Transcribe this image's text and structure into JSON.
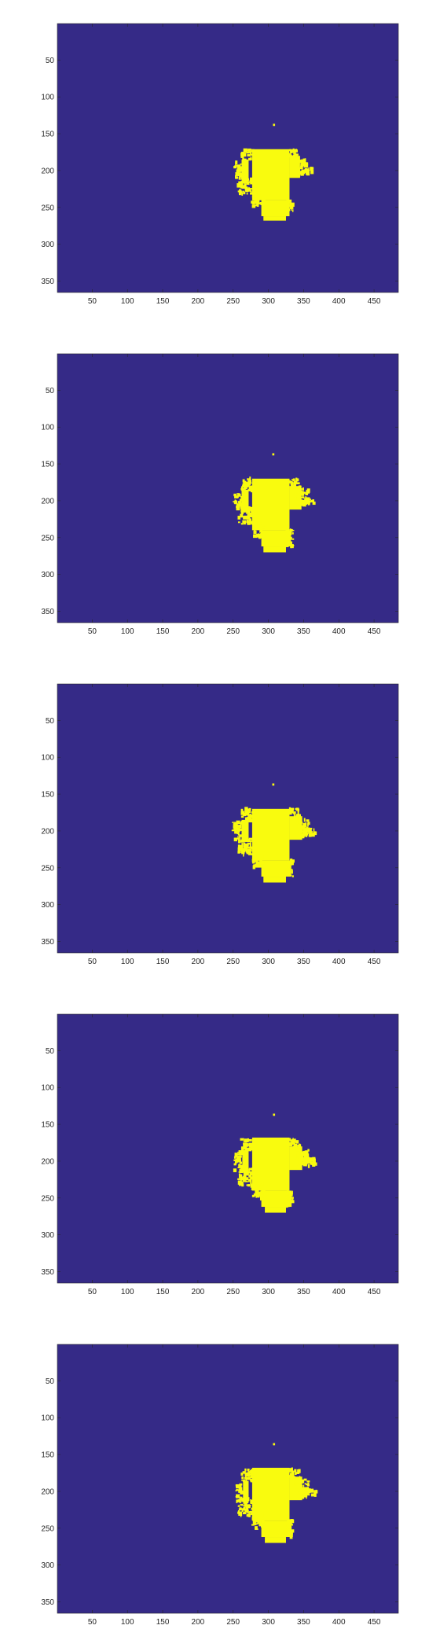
{
  "figure": {
    "background_color": "#ffffff",
    "axes_color": "#262626"
  },
  "chart_data": [
    {
      "type": "heatmap",
      "title": "",
      "xlabel": "",
      "ylabel": "",
      "xlim": [
        0.5,
        484.5
      ],
      "ylim": [
        0.5,
        365.5
      ],
      "y_reversed": true,
      "x_ticks": [
        50,
        100,
        150,
        200,
        250,
        300,
        350,
        400,
        450
      ],
      "y_ticks": [
        50,
        100,
        150,
        200,
        250,
        300,
        350
      ],
      "x_tick_labels": [
        "50",
        "100",
        "150",
        "200",
        "250",
        "300",
        "350",
        "400",
        "450"
      ],
      "y_tick_labels": [
        "50",
        "100",
        "150",
        "200",
        "250",
        "300",
        "350"
      ],
      "colors": {
        "background": "#352a87",
        "mask": "#f9fb0e"
      },
      "mask_value": 1,
      "background_value": 0,
      "speck": [
        308,
        138
      ],
      "blob": {
        "core": [
          [
            277,
            171,
            330,
            240
          ],
          [
            262,
            185,
            272,
            215
          ],
          [
            330,
            180,
            345,
            210
          ],
          [
            290,
            240,
            330,
            262
          ],
          [
            293,
            262,
            325,
            268
          ]
        ],
        "fringe": [
          [
            262,
            172,
            278,
            186
          ],
          [
            252,
            188,
            262,
            210
          ],
          [
            258,
            210,
            278,
            232
          ],
          [
            330,
            170,
            342,
            182
          ],
          [
            338,
            184,
            355,
            206
          ],
          [
            345,
            196,
            362,
            204
          ],
          [
            278,
            230,
            295,
            250
          ],
          [
            325,
            240,
            335,
            258
          ]
        ]
      }
    },
    {
      "type": "heatmap",
      "title": "",
      "xlabel": "",
      "ylabel": "",
      "xlim": [
        0.5,
        484.5
      ],
      "ylim": [
        0.5,
        365.5
      ],
      "y_reversed": true,
      "x_ticks": [
        50,
        100,
        150,
        200,
        250,
        300,
        350,
        400,
        450
      ],
      "y_ticks": [
        50,
        100,
        150,
        200,
        250,
        300,
        350
      ],
      "x_tick_labels": [
        "50",
        "100",
        "150",
        "200",
        "250",
        "300",
        "350",
        "400",
        "450"
      ],
      "y_tick_labels": [
        "50",
        "100",
        "150",
        "200",
        "250",
        "300",
        "350"
      ],
      "colors": {
        "background": "#352a87",
        "mask": "#f9fb0e"
      },
      "mask_value": 1,
      "background_value": 0,
      "speck": [
        307,
        137
      ],
      "blob": {
        "core": [
          [
            277,
            170,
            330,
            240
          ],
          [
            262,
            185,
            272,
            215
          ],
          [
            330,
            180,
            347,
            212
          ],
          [
            290,
            240,
            332,
            262
          ],
          [
            293,
            262,
            325,
            270
          ]
        ],
        "fringe": [
          [
            262,
            170,
            278,
            186
          ],
          [
            252,
            188,
            262,
            212
          ],
          [
            258,
            210,
            278,
            232
          ],
          [
            330,
            170,
            345,
            182
          ],
          [
            338,
            184,
            358,
            208
          ],
          [
            345,
            196,
            365,
            204
          ],
          [
            278,
            230,
            295,
            250
          ],
          [
            325,
            240,
            335,
            262
          ]
        ]
      }
    },
    {
      "type": "heatmap",
      "title": "",
      "xlabel": "",
      "ylabel": "",
      "xlim": [
        0.5,
        484.5
      ],
      "ylim": [
        0.5,
        365.5
      ],
      "y_reversed": true,
      "x_ticks": [
        50,
        100,
        150,
        200,
        250,
        300,
        350,
        400,
        450
      ],
      "y_ticks": [
        50,
        100,
        150,
        200,
        250,
        300,
        350
      ],
      "x_tick_labels": [
        "50",
        "100",
        "150",
        "200",
        "250",
        "300",
        "350",
        "400",
        "450"
      ],
      "y_tick_labels": [
        "50",
        "100",
        "150",
        "200",
        "250",
        "300",
        "350"
      ],
      "colors": {
        "background": "#352a87",
        "mask": "#f9fb0e"
      },
      "mask_value": 1,
      "background_value": 0,
      "speck": [
        307,
        137
      ],
      "blob": {
        "core": [
          [
            277,
            170,
            330,
            240
          ],
          [
            262,
            185,
            272,
            215
          ],
          [
            330,
            180,
            348,
            212
          ],
          [
            290,
            240,
            332,
            262
          ],
          [
            293,
            262,
            325,
            270
          ]
        ],
        "fringe": [
          [
            262,
            170,
            278,
            186
          ],
          [
            250,
            188,
            262,
            212
          ],
          [
            258,
            210,
            278,
            232
          ],
          [
            330,
            170,
            345,
            182
          ],
          [
            338,
            184,
            358,
            208
          ],
          [
            345,
            196,
            367,
            206
          ],
          [
            278,
            230,
            295,
            250
          ],
          [
            325,
            240,
            335,
            262
          ]
        ]
      }
    },
    {
      "type": "heatmap",
      "title": "",
      "xlabel": "",
      "ylabel": "",
      "xlim": [
        0.5,
        484.5
      ],
      "ylim": [
        0.5,
        365.5
      ],
      "y_reversed": true,
      "x_ticks": [
        50,
        100,
        150,
        200,
        250,
        300,
        350,
        400,
        450
      ],
      "y_ticks": [
        50,
        100,
        150,
        200,
        250,
        300,
        350
      ],
      "x_tick_labels": [
        "50",
        "100",
        "150",
        "200",
        "250",
        "300",
        "350",
        "400",
        "450"
      ],
      "y_tick_labels": [
        "50",
        "100",
        "150",
        "200",
        "250",
        "300",
        "350"
      ],
      "colors": {
        "background": "#352a87",
        "mask": "#f9fb0e"
      },
      "mask_value": 1,
      "background_value": 0,
      "speck": [
        308,
        137
      ],
      "blob": {
        "core": [
          [
            277,
            168,
            330,
            240
          ],
          [
            263,
            185,
            272,
            215
          ],
          [
            330,
            180,
            348,
            212
          ],
          [
            290,
            240,
            333,
            262
          ],
          [
            295,
            262,
            325,
            270
          ]
        ],
        "fringe": [
          [
            262,
            170,
            278,
            186
          ],
          [
            252,
            188,
            263,
            214
          ],
          [
            258,
            210,
            278,
            234
          ],
          [
            330,
            170,
            345,
            182
          ],
          [
            338,
            184,
            358,
            208
          ],
          [
            345,
            196,
            368,
            206
          ],
          [
            278,
            230,
            295,
            252
          ],
          [
            325,
            240,
            335,
            262
          ]
        ]
      }
    },
    {
      "type": "heatmap",
      "title": "",
      "xlabel": "",
      "ylabel": "",
      "xlim": [
        0.5,
        484.5
      ],
      "ylim": [
        0.5,
        365.5
      ],
      "y_reversed": true,
      "x_ticks": [
        50,
        100,
        150,
        200,
        250,
        300,
        350,
        400,
        450
      ],
      "y_ticks": [
        50,
        100,
        150,
        200,
        250,
        300,
        350
      ],
      "x_tick_labels": [
        "50",
        "100",
        "150",
        "200",
        "250",
        "300",
        "350",
        "400",
        "450"
      ],
      "y_tick_labels": [
        "50",
        "100",
        "150",
        "200",
        "250",
        "300",
        "350"
      ],
      "colors": {
        "background": "#352a87",
        "mask": "#f9fb0e"
      },
      "mask_value": 1,
      "background_value": 0,
      "speck": [
        308,
        136
      ],
      "blob": {
        "core": [
          [
            277,
            168,
            330,
            240
          ],
          [
            264,
            186,
            272,
            215
          ],
          [
            330,
            180,
            348,
            212
          ],
          [
            290,
            240,
            333,
            262
          ],
          [
            295,
            262,
            325,
            270
          ]
        ],
        "fringe": [
          [
            262,
            170,
            278,
            186
          ],
          [
            254,
            190,
            264,
            214
          ],
          [
            258,
            210,
            278,
            234
          ],
          [
            330,
            170,
            345,
            182
          ],
          [
            338,
            184,
            358,
            208
          ],
          [
            345,
            196,
            368,
            206
          ],
          [
            278,
            230,
            295,
            252
          ],
          [
            325,
            240,
            335,
            262
          ]
        ]
      }
    }
  ]
}
